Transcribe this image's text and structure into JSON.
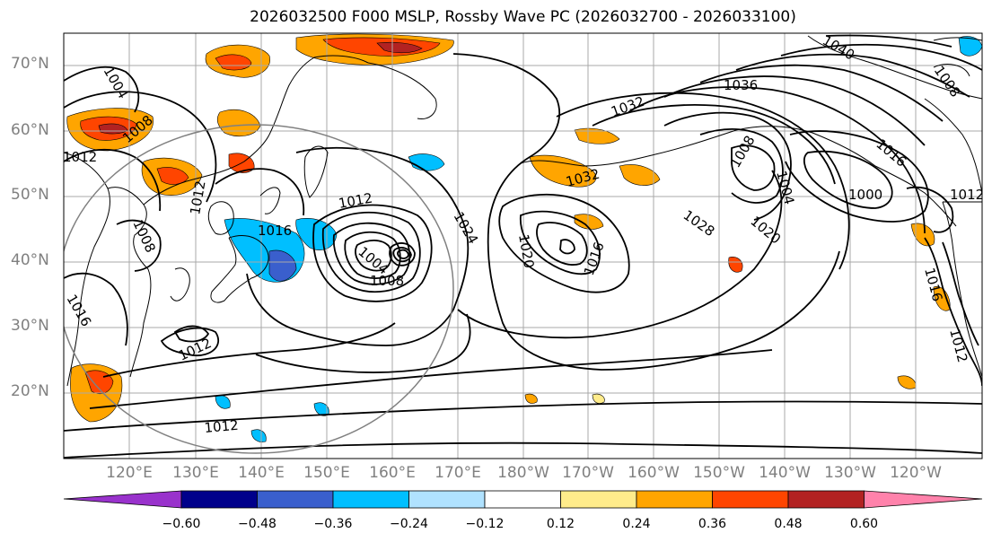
{
  "title": "2026032500 F000 MSLP, Rossby Wave PC (2026032700 - 2026033100)",
  "lat_labels": [
    "70°N",
    "60°N",
    "50°N",
    "40°N",
    "30°N",
    "20°N"
  ],
  "lon_labels": [
    "120°E",
    "130°E",
    "140°E",
    "150°E",
    "160°E",
    "170°E",
    "180°W",
    "170°W",
    "160°W",
    "150°W",
    "140°W",
    "130°W",
    "120°W"
  ],
  "colorbar": {
    "colors": [
      "#9932cc",
      "#00008b",
      "#3a5fcd",
      "#00bfff",
      "#b0e2ff",
      "#ffffff",
      "#ffec8b",
      "#ffa500",
      "#ff4500",
      "#b22222",
      "#ff82ab"
    ],
    "ticks": [
      "−0.60",
      "−0.48",
      "−0.36",
      "−0.24",
      "−0.12",
      "0.12",
      "0.24",
      "0.36",
      "0.48",
      "0.60"
    ]
  },
  "contour_labels": [
    "1004",
    "1008",
    "1012",
    "1016",
    "1012",
    "1008",
    "1012",
    "1016",
    "1012",
    "1012",
    "1004",
    "1008",
    "1024",
    "1020",
    "1016",
    "1032",
    "1036",
    "1040",
    "1032",
    "1028",
    "1020",
    "1008",
    "1004",
    "1000",
    "1016",
    "1012",
    "1016",
    "1012",
    "1008"
  ]
}
